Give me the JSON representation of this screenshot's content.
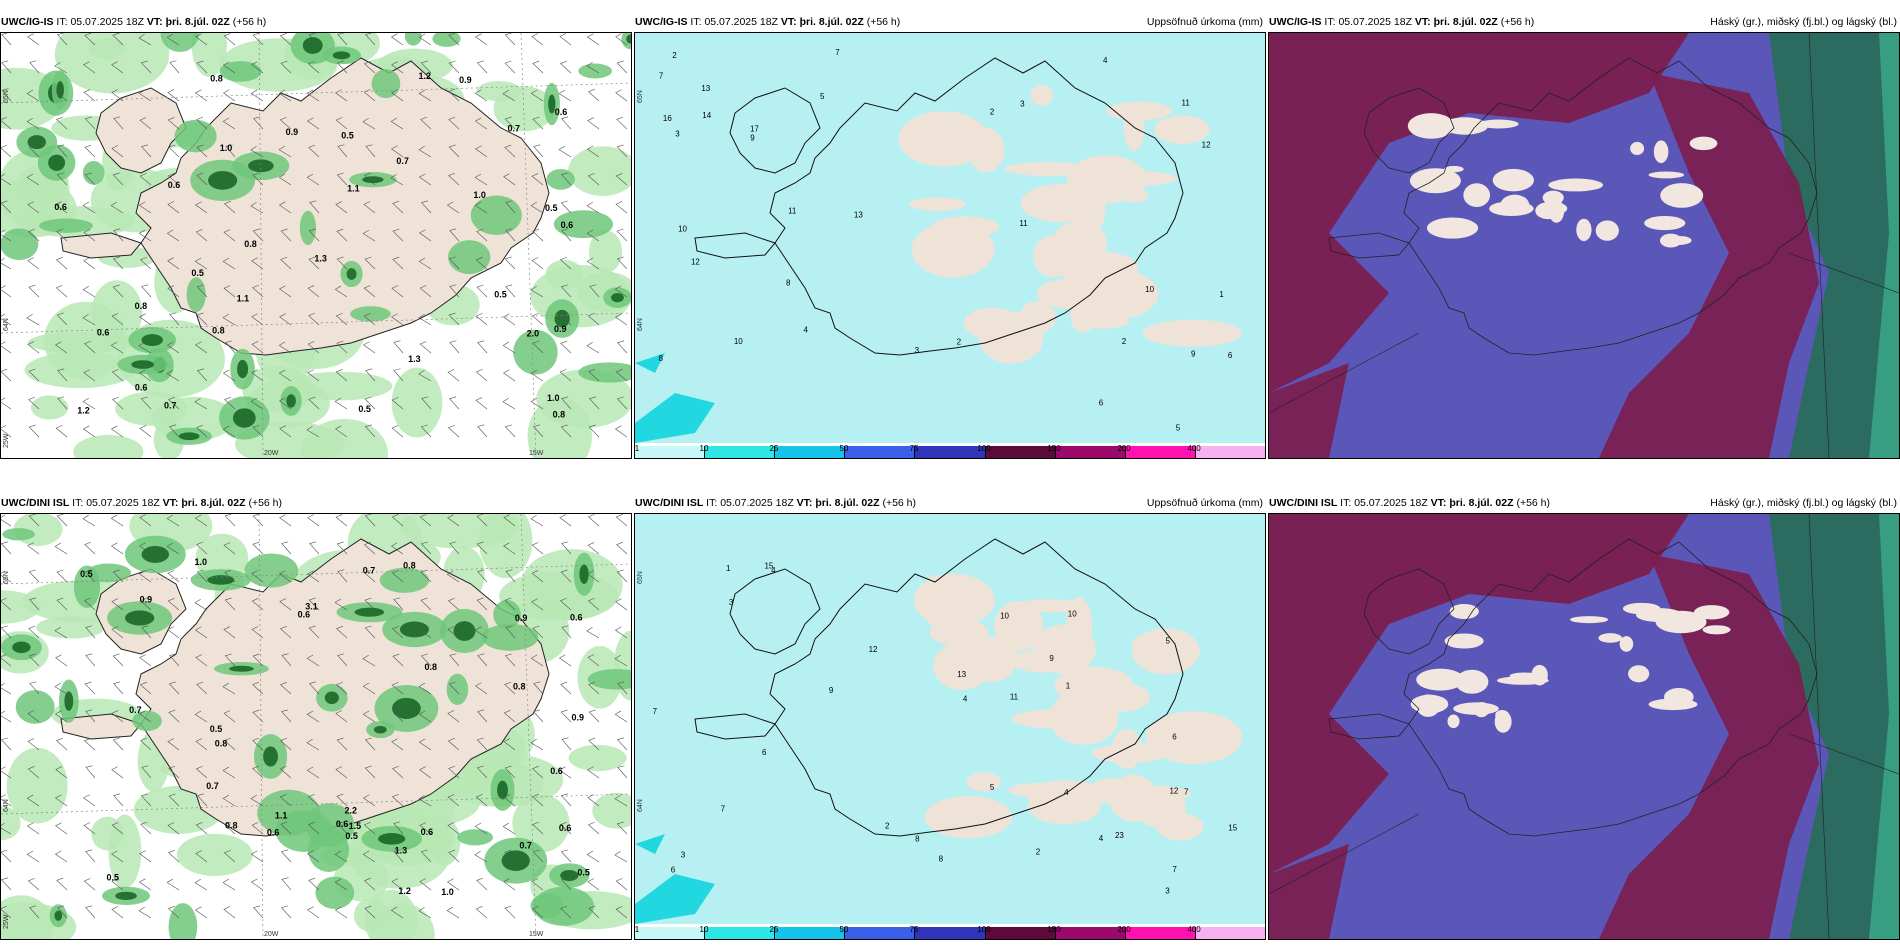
{
  "colors": {
    "land": "#efe3d8",
    "precip_light": "#b7f0f2",
    "green_light": "#b9e8b5",
    "green_mid": "#6fc77a",
    "green_dark": "#1f6b2c",
    "cloud_high": "#7b1d4e",
    "cloud_mid": "#5a57b8",
    "cloud_low": "#2c6b5f",
    "cloud_teal": "#3fbf9a"
  },
  "panels": [
    {
      "model": "UWC/IG-IS",
      "it_label": "IT:",
      "it_value": "05.07.2025 18Z",
      "vt_label": "VT:",
      "vt_value": "þri. 8.júl. 02Z",
      "lead": "(+56 h)",
      "title_right": "",
      "type": "wind",
      "axis_labels": [
        "65N",
        "64N",
        "25W",
        "20W",
        "15W"
      ],
      "values": [
        "1.0",
        "0.5",
        "0.7",
        "0.6",
        "0.8",
        "0.9",
        "1.1",
        "1.2",
        "2.0",
        "0.7",
        "0.6",
        "0.5",
        "1.0",
        "0.8",
        "0.6",
        "1.3",
        "0.5",
        "0.6",
        "0.8",
        "0.9",
        "1.0",
        "0.5",
        "0.6",
        "0.8",
        "1.1",
        "0.9",
        "1.2",
        "1.3",
        "0.5",
        "0.6",
        "0.7",
        "0.8"
      ]
    },
    {
      "model": "UWC/IG-IS",
      "it_label": "IT:",
      "it_value": "05.07.2025 18Z",
      "vt_label": "VT:",
      "vt_value": "þri. 8.júl. 02Z",
      "lead": "(+56 h)",
      "title_right": "Uppsöfnuð úrkoma (mm)",
      "type": "precip",
      "axis_labels": [
        "65N",
        "64N"
      ],
      "values": [
        "13",
        "10",
        "11",
        "8",
        "3",
        "2",
        "4",
        "6",
        "7",
        "17",
        "3",
        "2",
        "12",
        "13",
        "10",
        "5",
        "7",
        "6",
        "9",
        "4",
        "5",
        "3",
        "1",
        "2",
        "11",
        "12",
        "10",
        "14",
        "16",
        "11",
        "9",
        "2",
        "8"
      ],
      "colorbar_ticks": [
        "1",
        "10",
        "25",
        "50",
        "75",
        "100",
        "150",
        "200",
        "400"
      ],
      "colorbar_colors": [
        "#c8f7f7",
        "#2ee6e6",
        "#16c3ea",
        "#3a5fe8",
        "#2f34b8",
        "#5b0a3a",
        "#9b0a6a",
        "#ff12b0",
        "#f7b0f0"
      ]
    },
    {
      "model": "UWC/IG-IS",
      "it_label": "IT:",
      "it_value": "05.07.2025 18Z",
      "vt_label": "VT:",
      "vt_value": "þri. 8.júl. 02Z",
      "lead": "(+56 h)",
      "title_right": "Háský (gr.), miðský (fj.bl.) og lágský (bl.)",
      "type": "cloud"
    },
    {
      "model": "UWC/DINI ISL",
      "it_label": "IT:",
      "it_value": "05.07.2025 18Z",
      "vt_label": "VT:",
      "vt_value": "þri. 8.júl. 02Z",
      "lead": "(+56 h)",
      "title_right": "",
      "type": "wind",
      "axis_labels": [
        "65N",
        "64N",
        "25W",
        "20W",
        "15W"
      ],
      "values": [
        "0.7",
        "0.6",
        "2.2",
        "0.7",
        "0.6",
        "0.8",
        "1.0",
        "0.5",
        "0.9",
        "1.3",
        "0.7",
        "0.5",
        "0.8",
        "0.6",
        "1.1",
        "0.5",
        "0.6",
        "0.9",
        "0.8",
        "1.0",
        "0.6",
        "1.2",
        "0.7",
        "0.5",
        "0.6",
        "0.8",
        "3.1",
        "0.6",
        "0.8",
        "0.5",
        "1.5",
        "0.9"
      ]
    },
    {
      "model": "UWC/DINI ISL",
      "it_label": "IT:",
      "it_value": "05.07.2025 18Z",
      "vt_label": "VT:",
      "vt_value": "þri. 8.júl. 02Z",
      "lead": "(+56 h)",
      "title_right": "Uppsöfnuð úrkoma (mm)",
      "type": "precip",
      "axis_labels": [
        "65N",
        "64N"
      ],
      "values": [
        "7",
        "11",
        "12",
        "15",
        "10",
        "23",
        "13",
        "9",
        "7",
        "3",
        "4",
        "5",
        "6",
        "8",
        "1",
        "2",
        "3",
        "5",
        "7",
        "4",
        "6",
        "10",
        "9",
        "12",
        "15",
        "7",
        "4",
        "2",
        "3",
        "1",
        "8",
        "6",
        "4"
      ],
      "colorbar_ticks": [
        "1",
        "10",
        "25",
        "50",
        "75",
        "100",
        "150",
        "200",
        "400"
      ],
      "colorbar_colors": [
        "#c8f7f7",
        "#2ee6e6",
        "#16c3ea",
        "#3a5fe8",
        "#2f34b8",
        "#5b0a3a",
        "#9b0a6a",
        "#ff12b0",
        "#f7b0f0"
      ]
    },
    {
      "model": "UWC/DINI ISL",
      "it_label": "IT:",
      "it_value": "05.07.2025 18Z",
      "vt_label": "VT:",
      "vt_value": "þri. 8.júl. 02Z",
      "lead": "(+56 h)",
      "title_right": "Háský (gr.), miðský (fj.bl.) og lágský (bl.)",
      "type": "cloud"
    }
  ]
}
